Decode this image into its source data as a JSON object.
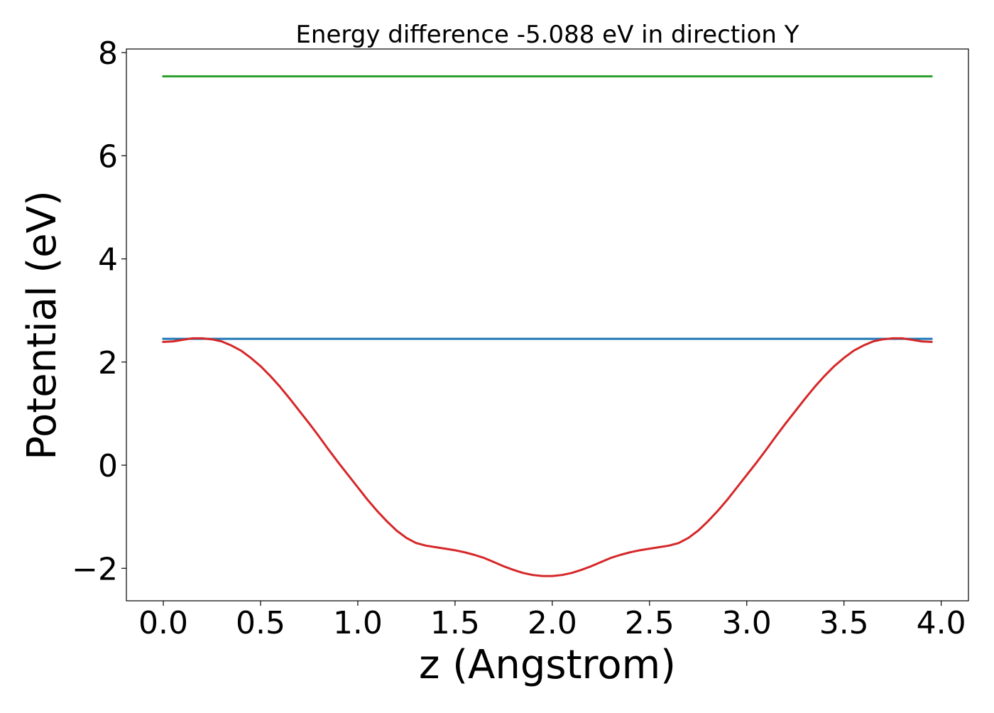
{
  "chart_data": {
    "type": "line",
    "title": "Energy difference -5.088 eV in direction Y",
    "xlabel": "z (Angstrom)",
    "ylabel": "Potential (eV)",
    "xlim": [
      -0.19,
      4.14
    ],
    "ylim": [
      -2.63,
      8.07
    ],
    "xticks": [
      0.0,
      0.5,
      1.0,
      1.5,
      2.0,
      2.5,
      3.0,
      3.5,
      4.0
    ],
    "xtick_labels": [
      "0.0",
      "0.5",
      "1.0",
      "1.5",
      "2.0",
      "2.5",
      "3.0",
      "3.5",
      "4.0"
    ],
    "yticks": [
      -2,
      0,
      2,
      4,
      6,
      8
    ],
    "ytick_labels": [
      "−2",
      "0",
      "2",
      "4",
      "6",
      "8"
    ],
    "grid": false,
    "legend": "none",
    "series": [
      {
        "color": "#2ca02c",
        "x": [
          0.0,
          3.95
        ],
        "y": [
          7.54,
          7.54
        ]
      },
      {
        "color": "#1f77b4",
        "x": [
          0.0,
          3.95
        ],
        "y": [
          2.45,
          2.45
        ]
      },
      {
        "color": "#d62728",
        "x": [
          0.0,
          0.05,
          0.1,
          0.15,
          0.2,
          0.25,
          0.3,
          0.35,
          0.4,
          0.45,
          0.5,
          0.55,
          0.6,
          0.65,
          0.7,
          0.75,
          0.8,
          0.85,
          0.9,
          0.95,
          1.0,
          1.05,
          1.1,
          1.15,
          1.2,
          1.25,
          1.3,
          1.35,
          1.4,
          1.45,
          1.5,
          1.55,
          1.6,
          1.65,
          1.7,
          1.75,
          1.8,
          1.85,
          1.9,
          1.95,
          2.0,
          2.05,
          2.1,
          2.15,
          2.2,
          2.25,
          2.3,
          2.35,
          2.4,
          2.45,
          2.5,
          2.55,
          2.6,
          2.65,
          2.7,
          2.75,
          2.8,
          2.85,
          2.9,
          2.95,
          3.0,
          3.05,
          3.1,
          3.15,
          3.2,
          3.25,
          3.3,
          3.35,
          3.4,
          3.45,
          3.5,
          3.55,
          3.6,
          3.65,
          3.7,
          3.75,
          3.8,
          3.85,
          3.9,
          3.95
        ],
        "y": [
          2.39,
          2.4,
          2.43,
          2.46,
          2.46,
          2.44,
          2.4,
          2.32,
          2.22,
          2.08,
          1.92,
          1.73,
          1.52,
          1.29,
          1.05,
          0.81,
          0.56,
          0.3,
          0.05,
          -0.19,
          -0.43,
          -0.67,
          -0.89,
          -1.09,
          -1.27,
          -1.41,
          -1.51,
          -1.56,
          -1.59,
          -1.62,
          -1.65,
          -1.69,
          -1.74,
          -1.8,
          -1.88,
          -1.96,
          -2.03,
          -2.09,
          -2.13,
          -2.15,
          -2.15,
          -2.13,
          -2.09,
          -2.03,
          -1.96,
          -1.88,
          -1.8,
          -1.74,
          -1.69,
          -1.65,
          -1.62,
          -1.59,
          -1.56,
          -1.51,
          -1.41,
          -1.27,
          -1.09,
          -0.89,
          -0.67,
          -0.43,
          -0.19,
          0.05,
          0.3,
          0.56,
          0.81,
          1.05,
          1.29,
          1.52,
          1.73,
          1.92,
          2.08,
          2.22,
          2.32,
          2.4,
          2.44,
          2.46,
          2.46,
          2.43,
          2.4,
          2.39
        ]
      }
    ]
  }
}
